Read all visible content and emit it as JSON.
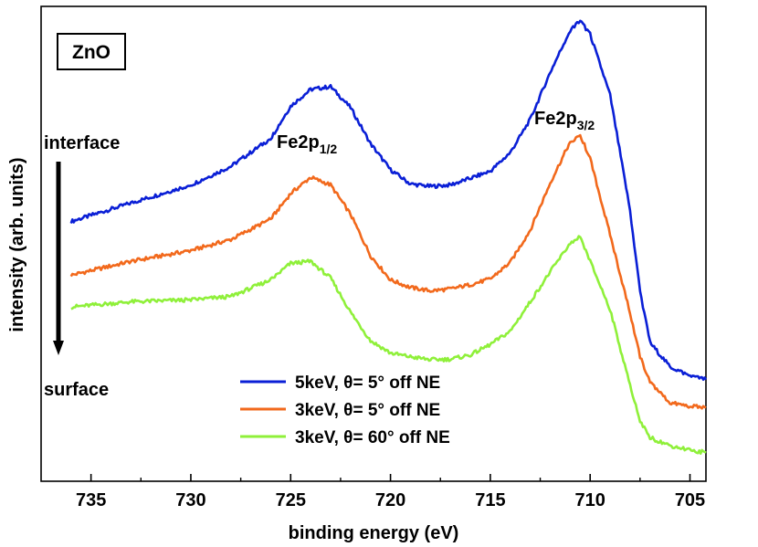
{
  "chart_data": {
    "type": "line",
    "title": "",
    "xlabel": "binding energy (eV)",
    "ylabel": "intensity (arb. units)",
    "xlim": [
      737.5,
      704.2
    ],
    "ylim": [
      0,
      100
    ],
    "x_reversed": true,
    "y_ticks_shown": false,
    "xticks": [
      735,
      730,
      725,
      720,
      715,
      710,
      705
    ],
    "sample_label": "ZnO",
    "annotations": {
      "peak_1_2": {
        "main": "Fe2p",
        "sub": "1/2",
        "x": 724.5
      },
      "peak_3_2": {
        "main": "Fe2p",
        "sub": "3/2",
        "x": 711.0
      },
      "depth_top": "interface",
      "depth_bottom": "surface"
    },
    "legend": {
      "position": "bottom-center"
    },
    "series": [
      {
        "name": "5keV, θ= 5° off NE",
        "color": "#0a1fd6",
        "x": [
          736,
          733,
          730,
          728,
          726,
          725,
          724,
          723,
          722,
          721,
          720,
          719,
          718,
          717,
          716,
          715,
          714,
          713,
          712,
          711,
          710.5,
          710,
          709,
          708,
          707.5,
          707,
          706,
          705,
          704.2
        ],
        "y": [
          54.7,
          58.6,
          62.4,
          66.3,
          72.2,
          79.0,
          82.5,
          83.1,
          78.7,
          71.1,
          65.6,
          62.6,
          62.1,
          62.4,
          63.8,
          65.3,
          69.2,
          76.2,
          86.1,
          95.0,
          97.0,
          94.1,
          81.3,
          57.0,
          40.0,
          29.2,
          24.1,
          22.2,
          21.4
        ]
      },
      {
        "name": "3keV, θ= 5° off NE",
        "color": "#f2691c",
        "x": [
          736,
          733,
          730,
          728,
          726,
          725,
          724,
          723,
          722,
          721,
          720,
          719,
          718,
          717,
          716,
          715,
          714,
          713,
          712,
          711,
          710.5,
          710,
          709,
          708,
          707.5,
          707,
          706,
          705,
          704.2
        ],
        "y": [
          43.4,
          46.3,
          48.6,
          50.9,
          55.2,
          60.6,
          64.0,
          62.4,
          56.2,
          47.5,
          42.4,
          40.8,
          40.1,
          40.5,
          41.4,
          42.6,
          46.1,
          52.9,
          62.8,
          71.5,
          73.0,
          67.9,
          51.9,
          35.4,
          26.2,
          20.9,
          16.5,
          15.8,
          15.5
        ]
      },
      {
        "name": "3keV, θ= 60° off NE",
        "color": "#8ff03a",
        "x": [
          736,
          733,
          730,
          728,
          726,
          725,
          724,
          723,
          722,
          721,
          720,
          719,
          718,
          717,
          716,
          715,
          714,
          713,
          712,
          711,
          710.5,
          710,
          709,
          708,
          707.5,
          707,
          706,
          705,
          704.2
        ],
        "y": [
          36.7,
          37.8,
          38.2,
          38.9,
          42.4,
          45.9,
          46.3,
          42.8,
          35.6,
          29.6,
          27.0,
          26.2,
          25.6,
          25.7,
          26.6,
          28.8,
          31.6,
          37.8,
          44.1,
          50.1,
          51.6,
          46.3,
          36.2,
          20.1,
          12.7,
          9.2,
          7.5,
          6.6,
          6.0
        ]
      }
    ]
  }
}
